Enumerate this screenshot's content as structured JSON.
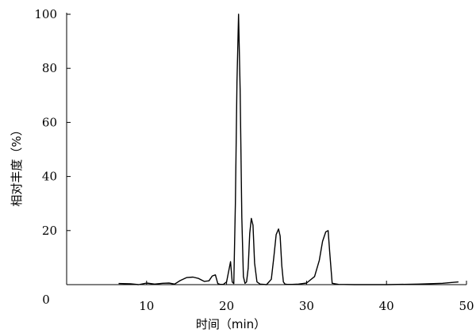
{
  "chart_data": {
    "type": "line",
    "title": "",
    "xlabel": "时间（min）",
    "ylabel": "相对丰度（%）",
    "xlim": [
      0,
      50
    ],
    "ylim": [
      0,
      100
    ],
    "xticks": [
      10,
      20,
      30,
      40,
      50
    ],
    "yticks": [
      0,
      20,
      40,
      60,
      80,
      100
    ],
    "origin_label": "0",
    "grid": false,
    "legend": "none",
    "series": [
      {
        "color": "#000000",
        "x": [
          6.5,
          8.0,
          9.0,
          10.0,
          11.0,
          12.0,
          12.8,
          13.5,
          14.2,
          15.0,
          15.8,
          16.5,
          17.2,
          17.8,
          18.2,
          18.6,
          18.9,
          19.2,
          19.6,
          20.0,
          20.3,
          20.5,
          20.7,
          20.9,
          21.1,
          21.3,
          21.5,
          21.7,
          21.9,
          22.1,
          22.3,
          22.5,
          22.7,
          22.9,
          23.1,
          23.3,
          23.5,
          23.8,
          24.2,
          25.0,
          25.6,
          25.9,
          26.2,
          26.5,
          26.7,
          26.9,
          27.1,
          27.3,
          27.6,
          28.2,
          29.0,
          30.0,
          31.0,
          31.6,
          32.0,
          32.4,
          32.7,
          32.9,
          33.2,
          34.0,
          36.0,
          40.0,
          44.0,
          47.0,
          49.0
        ],
        "y": [
          0.4,
          0.3,
          0.0,
          0.6,
          0.2,
          0.5,
          0.6,
          0.2,
          1.5,
          2.6,
          2.8,
          2.3,
          1.2,
          1.4,
          3.2,
          3.6,
          0.4,
          0.1,
          0.1,
          1.0,
          5.5,
          8.5,
          1.0,
          0.4,
          30.0,
          75.0,
          100.0,
          72.0,
          25.0,
          3.0,
          0.5,
          1.0,
          6.0,
          19.0,
          24.5,
          22.0,
          8.0,
          1.0,
          0.2,
          0.0,
          2.0,
          10.0,
          18.5,
          20.6,
          18.0,
          7.0,
          1.0,
          0.2,
          0.1,
          0.1,
          0.2,
          0.6,
          3.0,
          9.0,
          16.0,
          19.5,
          20.0,
          12.0,
          0.5,
          0.1,
          0.0,
          0.0,
          0.2,
          0.5,
          1.0
        ]
      }
    ]
  }
}
